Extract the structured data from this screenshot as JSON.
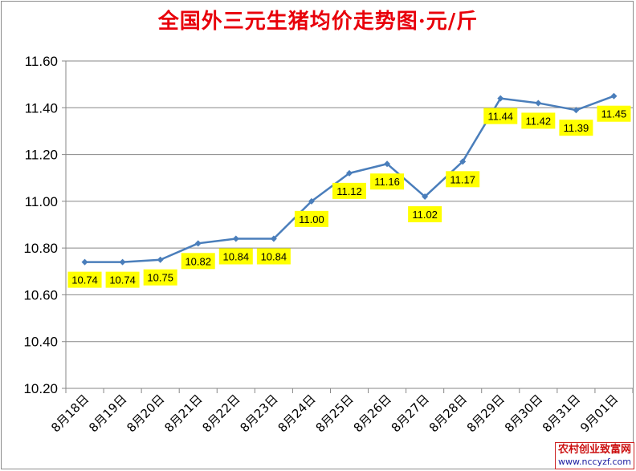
{
  "chart_data": {
    "type": "line",
    "title": "全国外三元生猪均价走势图·元/斤",
    "xlabel": "",
    "ylabel": "",
    "categories": [
      "8月18日",
      "8月19日",
      "8月20日",
      "8月21日",
      "8月22日",
      "8月23日",
      "8月24日",
      "8月25日",
      "8月26日",
      "8月27日",
      "8月28日",
      "8月29日",
      "8月30日",
      "8月31日",
      "9月01日"
    ],
    "series": [
      {
        "values": [
          10.74,
          10.74,
          10.75,
          10.82,
          10.84,
          10.84,
          11.0,
          11.12,
          11.16,
          11.02,
          11.17,
          11.44,
          11.42,
          11.39,
          11.45
        ],
        "labels": [
          "10.74",
          "10.74",
          "10.75",
          "10.82",
          "10.84",
          "10.84",
          "11.00",
          "11.12",
          "11.16",
          "11.02",
          "11.17",
          "11.44",
          "11.42",
          "11.39",
          "11.45"
        ]
      }
    ],
    "ylim": [
      10.2,
      11.6
    ],
    "yticks": [
      "10.20",
      "10.40",
      "10.60",
      "10.80",
      "11.00",
      "11.20",
      "11.40",
      "11.60"
    ],
    "grid": true,
    "legend": "none",
    "line_color": "#4a7ebb",
    "label_bg": "#ffff00"
  },
  "watermark": {
    "name": "农村创业致富网",
    "url": "www.nccyzf.com"
  }
}
